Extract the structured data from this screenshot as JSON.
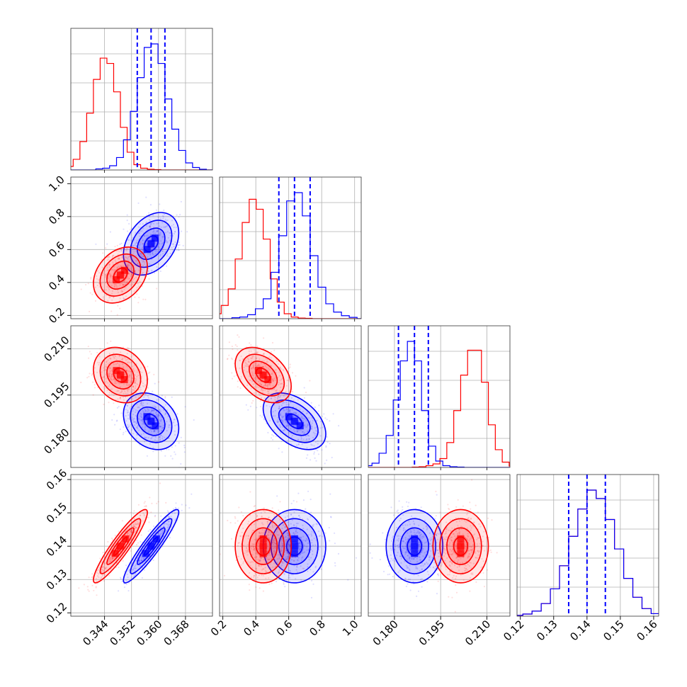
{
  "colors": {
    "sample_a": "#0000ff",
    "sample_b": "#ff0000",
    "grid": "#b0b0b0",
    "frame": "#333333"
  },
  "chart_data": {
    "type": "corner",
    "n_params": 4,
    "grid": true,
    "params": [
      {
        "range": [
          0.334,
          0.376
        ],
        "ticks": [
          0.344,
          0.352,
          0.36,
          0.368
        ],
        "tick_labels": [
          "0.344",
          "0.352",
          "0.360",
          "0.368"
        ],
        "quantiles_blue": [
          0.3537,
          0.3578,
          0.3619
        ]
      },
      {
        "range": [
          0.18,
          1.04
        ],
        "ticks": [
          0.2,
          0.4,
          0.6,
          0.8,
          1.0
        ],
        "tick_labels": [
          "0.2",
          "0.4",
          "0.6",
          "0.8",
          "1.0"
        ],
        "quantiles_blue": [
          0.54,
          0.635,
          0.73
        ]
      },
      {
        "range": [
          0.1715,
          0.2175
        ],
        "ticks": [
          0.18,
          0.195,
          0.21
        ],
        "tick_labels": [
          "0.180",
          "0.195",
          "0.210"
        ],
        "quantiles_blue": [
          0.1813,
          0.1865,
          0.191
        ]
      },
      {
        "range": [
          0.119,
          0.1615
        ],
        "ticks": [
          0.12,
          0.13,
          0.14,
          0.15,
          0.16
        ],
        "tick_labels": [
          "0.12",
          "0.13",
          "0.14",
          "0.15",
          "0.16"
        ],
        "quantiles_blue": [
          0.1345,
          0.14,
          0.1455
        ]
      }
    ],
    "samples": [
      {
        "color_key": "sample_a",
        "mean": [
          0.3578,
          0.635,
          0.1865,
          0.14
        ],
        "std": [
          0.0041,
          0.095,
          0.0046,
          0.0055
        ],
        "corr": [
          [
            0,
            1,
            0.35
          ],
          [
            0,
            2,
            -0.25
          ],
          [
            0,
            3,
            0.93
          ],
          [
            1,
            2,
            -0.45
          ],
          [
            2,
            3,
            0.0
          ],
          [
            1,
            3,
            0.0
          ]
        ],
        "hist_1d": [
          [
            0.003,
            0.005,
            0.012,
            0.035,
            0.085,
            0.165,
            0.26,
            0.345,
            0.355,
            0.3,
            0.2,
            0.115,
            0.055,
            0.02,
            0.007,
            0.002
          ],
          [
            0.003,
            0.005,
            0.012,
            0.03,
            0.06,
            0.14,
            0.25,
            0.355,
            0.38,
            0.31,
            0.19,
            0.095,
            0.045,
            0.02,
            0.009,
            0.004
          ],
          [
            0.002,
            0.005,
            0.012,
            0.04,
            0.09,
            0.19,
            0.3,
            0.355,
            0.3,
            0.16,
            0.06,
            0.018,
            0.005,
            0.002,
            0.001,
            0.0
          ],
          [
            0.002,
            0.005,
            0.012,
            0.03,
            0.065,
            0.12,
            0.19,
            0.255,
            0.3,
            0.28,
            0.23,
            0.16,
            0.09,
            0.045,
            0.018,
            0.006
          ]
        ]
      },
      {
        "color_key": "sample_b",
        "mean": [
          0.3487,
          0.445,
          0.2015,
          0.14
        ],
        "std": [
          0.004,
          0.085,
          0.0045,
          0.0055
        ],
        "corr": [
          [
            0,
            1,
            0.3
          ],
          [
            0,
            2,
            -0.2
          ],
          [
            0,
            3,
            0.92
          ],
          [
            1,
            2,
            -0.4
          ],
          [
            2,
            3,
            0.0
          ],
          [
            1,
            3,
            0.0
          ]
        ],
        "hist_1d": [
          [
            0.01,
            0.03,
            0.08,
            0.16,
            0.255,
            0.315,
            0.3,
            0.22,
            0.12,
            0.05,
            0.015,
            0.005,
            0.002,
            0.001,
            0.0,
            0.0
          ],
          [
            0.005,
            0.015,
            0.04,
            0.09,
            0.18,
            0.29,
            0.36,
            0.33,
            0.24,
            0.12,
            0.05,
            0.015,
            0.005,
            0.002,
            0.001,
            0.0
          ],
          [
            0.0,
            0.001,
            0.002,
            0.005,
            0.01,
            0.025,
            0.07,
            0.16,
            0.26,
            0.33,
            0.33,
            0.24,
            0.12,
            0.05,
            0.015,
            0.004
          ],
          [
            0.002,
            0.005,
            0.012,
            0.03,
            0.065,
            0.12,
            0.19,
            0.255,
            0.3,
            0.28,
            0.23,
            0.16,
            0.09,
            0.045,
            0.018,
            0.006
          ]
        ]
      }
    ]
  }
}
